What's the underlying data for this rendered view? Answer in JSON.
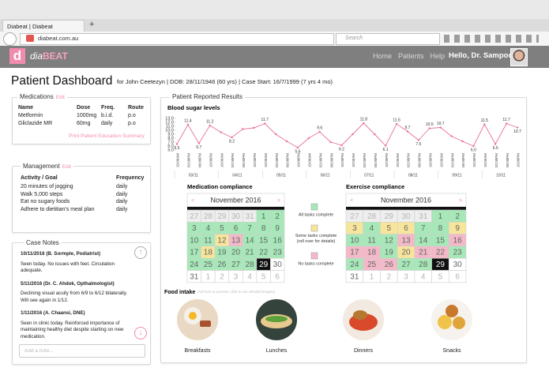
{
  "browser": {
    "tab_title": "Diabeat | Diabeat",
    "new_tab": "+",
    "url": "diabeat.com.au",
    "search_placeholder": "Search"
  },
  "header": {
    "logo_icon": "d",
    "logo_prefix": "dia",
    "logo_suffix": "BEAT",
    "nav": [
      "Home",
      "Patients",
      "Help"
    ],
    "greeting": "Hello, Dr. Sampool!"
  },
  "page": {
    "title": "Patient Dashboard",
    "patient_info": "for John Ceetezyn | DOB: 28/11/1946 (60 yrs) | Case Start: 16/7/1999 (7 yrs 4 mo)"
  },
  "medications": {
    "title": "Medications",
    "edit": "Edit",
    "columns": [
      "Name",
      "Dose",
      "Freq.",
      "Route"
    ],
    "rows": [
      [
        "Metformin",
        "1000mg",
        "b.i.d.",
        "p.o"
      ],
      [
        "Gliclazide MR",
        "60mg",
        "daily",
        "p.o"
      ]
    ],
    "link": "Print Patient Education Summary"
  },
  "management": {
    "title": "Management",
    "edit": "Edit",
    "columns": [
      "Activity / Goal",
      "Frequency"
    ],
    "rows": [
      [
        "20 minutes of jogging",
        "daily"
      ],
      [
        "Walk 5,000 steps",
        "daily"
      ],
      [
        "Eat no sugary foods",
        "daily"
      ],
      [
        "Adhere to dietitian's meal plan",
        "daily"
      ]
    ]
  },
  "case_notes": {
    "title": "Case Notes",
    "notes": [
      {
        "heading": "10/11/2016 (B. Sormple, Podiatrist)",
        "body": "Seen today. No issues with feet. Circulation adequate."
      },
      {
        "heading": "5/11/2016 (Dr. C. Ahdok, Opthalmologist)",
        "body": "Declining visual acuity from 6/9 to 6/12 bilaterally. Will see again in 1/12."
      },
      {
        "heading": "1/11/2016 (A. Chaansi, DNE)",
        "body": "Seen in clinic today. Reinforced importance of maintaining healthy diet despite starting on new medication."
      }
    ],
    "input_placeholder": "Add a note..."
  },
  "results": {
    "title": "Patient Reported Results",
    "legend": [
      {
        "label": "All tasks complete",
        "color": "#a6e8b8"
      },
      {
        "label": "Some tasks complete (roll over for details)",
        "color": "#f8e59c"
      },
      {
        "label": "No tasks complete",
        "color": "#f3b9c8"
      }
    ],
    "food": {
      "title": "Food intake",
      "hint": "(roll over to preview, click to see detailed images)",
      "items": [
        "Breakfasts",
        "Lunches",
        "Dinners",
        "Snacks"
      ]
    }
  },
  "chart_data": {
    "type": "line",
    "title": "Blood sugar levels",
    "color": "#e8709a",
    "categories": [
      "10:00AM",
      "02:00PM",
      "06:00PM",
      "10:00PM",
      "10:00AM",
      "02:00PM",
      "06:00PM",
      "10:00PM",
      "10:00AM",
      "02:00PM",
      "06:00PM",
      "10:00PM",
      "10:00AM",
      "02:00PM",
      "06:00PM",
      "10:00PM",
      "10:00AM",
      "02:00PM",
      "06:00PM",
      "10:00PM",
      "10:00AM",
      "02:00PM",
      "06:00PM",
      "10:00PM",
      "10:00AM",
      "02:00PM",
      "06:00PM",
      "10:00PM",
      "10:00AM",
      "02:00PM",
      "06:00PM",
      "10:00PM"
    ],
    "dates": [
      "03/11",
      "04/11",
      "05/11",
      "06/11",
      "07/11",
      "08/11",
      "09/11",
      "10/11"
    ],
    "values": [
      6.5,
      11.4,
      6.7,
      11.2,
      9.5,
      8.2,
      10.3,
      10.6,
      11.7,
      9.0,
      7.2,
      5.6,
      8.0,
      9.6,
      7.0,
      6.2,
      9.0,
      11.8,
      9.0,
      6.1,
      11.6,
      9.7,
      7.5,
      10.5,
      10.7,
      8.5,
      7.2,
      6.0,
      11.5,
      6.5,
      11.7,
      10.7
    ],
    "value_labels": [
      "6.5",
      "11.4",
      "6.7",
      "11.2",
      null,
      "8.2",
      null,
      null,
      "11.7",
      null,
      null,
      "5.6",
      null,
      "9.6",
      null,
      "6.2",
      null,
      "11.8",
      null,
      "6.1",
      "11.6",
      "9.7",
      "7.5",
      "10.5",
      "10.7",
      null,
      null,
      "6.0",
      "11.5",
      "6.5",
      "11.7",
      "10.7"
    ],
    "ylim": [
      5,
      13
    ],
    "yticks": [
      {
        "value": 5,
        "label": "5.0"
      },
      {
        "value": 6,
        "label": "6.0"
      },
      {
        "value": 7,
        "label": "7.0"
      },
      {
        "value": 8,
        "label": "8.0"
      },
      {
        "value": 9,
        "label": "9.0"
      },
      {
        "value": 10,
        "label": "10.0"
      },
      {
        "value": 11,
        "label": "11.0"
      },
      {
        "value": 12,
        "label": "12.0"
      },
      {
        "value": 13,
        "label": "13.0"
      }
    ],
    "grid": false
  },
  "calendars": [
    {
      "title": "Medication compliance",
      "month": "November 2016",
      "prev": "<",
      "next": ">",
      "days": [
        27,
        28,
        29,
        30,
        31,
        1,
        2,
        3,
        4,
        5,
        6,
        7,
        8,
        9,
        10,
        11,
        12,
        13,
        14,
        15,
        16,
        17,
        18,
        19,
        20,
        21,
        22,
        23,
        24,
        25,
        26,
        27,
        28,
        29,
        30,
        31,
        1,
        2,
        3,
        4,
        5,
        6
      ],
      "colors": [
        "#eeeeee",
        "#eeeeee",
        "#eeeeee",
        "#eeeeee",
        "#eeeeee",
        "#a6e8b8",
        "#a6e8b8",
        "#a6e8b8",
        "#a6e8b8",
        "#a6e8b8",
        "#a6e8b8",
        "#a6e8b8",
        "#a6e8b8",
        "#a6e8b8",
        "#a6e8b8",
        "#a6e8b8",
        "#f8e59c",
        "#f3b9c8",
        "#a6e8b8",
        "#a6e8b8",
        "#a6e8b8",
        "#a6e8b8",
        "#f8e59c",
        "#a6e8b8",
        "#a6e8b8",
        "#a6e8b8",
        "#a6e8b8",
        "#a6e8b8",
        "#a6e8b8",
        "#a6e8b8",
        "#a6e8b8",
        "#a6e8b8",
        "#a6e8b8",
        "#111111",
        "#ffffff",
        "#ffffff",
        "#ffffff",
        "#ffffff",
        "#ffffff",
        "#ffffff",
        "#ffffff",
        "#ffffff"
      ],
      "text_colors": [
        "#b5b5b5",
        "#b5b5b5",
        "#b5b5b5",
        "#b5b5b5",
        "#b5b5b5",
        "#666666",
        "#666666",
        "#666666",
        "#666666",
        "#666666",
        "#666666",
        "#666666",
        "#666666",
        "#666666",
        "#666666",
        "#666666",
        "#666666",
        "#666666",
        "#666666",
        "#666666",
        "#666666",
        "#666666",
        "#666666",
        "#666666",
        "#666666",
        "#666666",
        "#666666",
        "#666666",
        "#666666",
        "#666666",
        "#666666",
        "#666666",
        "#666666",
        "#ffffff",
        "#666666",
        "#666666",
        "#b5b5b5",
        "#b5b5b5",
        "#b5b5b5",
        "#b5b5b5",
        "#b5b5b5",
        "#b5b5b5"
      ]
    },
    {
      "title": "Exercise compliance",
      "month": "November 2016",
      "prev": "<",
      "next": ">",
      "days": [
        27,
        28,
        29,
        30,
        31,
        1,
        2,
        3,
        4,
        5,
        6,
        7,
        8,
        9,
        10,
        11,
        12,
        13,
        14,
        15,
        16,
        17,
        18,
        19,
        20,
        21,
        22,
        23,
        24,
        25,
        26,
        27,
        28,
        29,
        30,
        31,
        1,
        2,
        3,
        4,
        5,
        6
      ],
      "colors": [
        "#eeeeee",
        "#eeeeee",
        "#eeeeee",
        "#eeeeee",
        "#eeeeee",
        "#a6e8b8",
        "#a6e8b8",
        "#f8e59c",
        "#a6e8b8",
        "#f8e59c",
        "#f8e59c",
        "#a6e8b8",
        "#a6e8b8",
        "#f8e59c",
        "#a6e8b8",
        "#a6e8b8",
        "#a6e8b8",
        "#f3b9c8",
        "#a6e8b8",
        "#a6e8b8",
        "#f3b9c8",
        "#f3b9c8",
        "#f3b9c8",
        "#a6e8b8",
        "#f8e59c",
        "#f3b9c8",
        "#f3b9c8",
        "#a6e8b8",
        "#a6e8b8",
        "#f3b9c8",
        "#f3b9c8",
        "#a6e8b8",
        "#a6e8b8",
        "#111111",
        "#ffffff",
        "#ffffff",
        "#ffffff",
        "#ffffff",
        "#ffffff",
        "#ffffff",
        "#ffffff",
        "#ffffff"
      ],
      "text_colors": [
        "#b5b5b5",
        "#b5b5b5",
        "#b5b5b5",
        "#b5b5b5",
        "#b5b5b5",
        "#666666",
        "#666666",
        "#666666",
        "#666666",
        "#666666",
        "#666666",
        "#666666",
        "#666666",
        "#666666",
        "#666666",
        "#666666",
        "#666666",
        "#666666",
        "#666666",
        "#666666",
        "#666666",
        "#666666",
        "#666666",
        "#666666",
        "#666666",
        "#666666",
        "#666666",
        "#666666",
        "#666666",
        "#666666",
        "#666666",
        "#666666",
        "#666666",
        "#ffffff",
        "#666666",
        "#666666",
        "#b5b5b5",
        "#b5b5b5",
        "#b5b5b5",
        "#b5b5b5",
        "#b5b5b5",
        "#b5b5b5"
      ]
    }
  ]
}
